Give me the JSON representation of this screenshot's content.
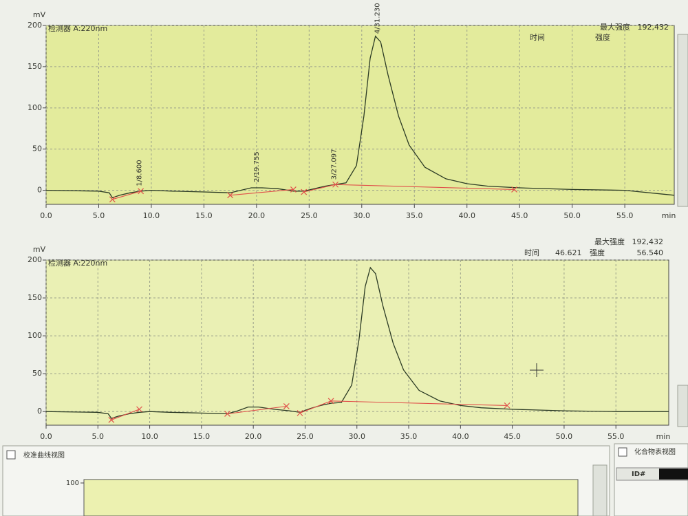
{
  "chart_data": [
    {
      "type": "line",
      "y_label": "mV",
      "x_label": "min",
      "detector": "检测器 A:220nm",
      "max_label": "最大强度",
      "max_value": "192,432",
      "time_label": "时间",
      "intensity_label": "强度",
      "xlim": [
        0,
        59.7
      ],
      "ylim": [
        -17,
        200
      ],
      "xticks": [
        {
          "value": 0,
          "label": "0.0"
        },
        {
          "value": 5,
          "label": "5.0"
        },
        {
          "value": 10,
          "label": "10.0"
        },
        {
          "value": 15,
          "label": "15.0"
        },
        {
          "value": 20,
          "label": "20.0"
        },
        {
          "value": 25,
          "label": "25.0"
        },
        {
          "value": 30,
          "label": "30.0"
        },
        {
          "value": 35,
          "label": "35.0"
        },
        {
          "value": 40,
          "label": "40.0"
        },
        {
          "value": 45,
          "label": "45.0"
        },
        {
          "value": 50,
          "label": "50.0"
        },
        {
          "value": 55,
          "label": "55.0"
        }
      ],
      "yticks": [
        0,
        50,
        100,
        150,
        200
      ],
      "grid": true,
      "series": [
        {
          "color": "#2b3a24",
          "x": [
            0,
            5,
            6,
            6.3,
            7,
            8,
            9,
            10,
            12,
            15,
            17.5,
            18.5,
            19.5,
            20.5,
            22,
            23.5,
            24.5,
            25.5,
            26.5,
            27.5,
            28.5,
            29.5,
            30.2,
            30.8,
            31.3,
            31.8,
            32.5,
            33.5,
            34.5,
            36,
            38,
            40,
            42,
            45,
            50,
            55,
            59.7
          ],
          "values": [
            0,
            -1,
            -3,
            -9,
            -6,
            -3,
            -1,
            0,
            -1,
            -2,
            -3,
            0,
            3,
            3,
            2,
            -1,
            -1,
            2,
            5,
            7,
            9,
            30,
            90,
            160,
            187,
            180,
            140,
            90,
            55,
            28,
            14,
            8,
            5,
            3,
            1,
            0,
            -6
          ]
        },
        {
          "color": "#e0504a",
          "x": [
            6.3,
            9,
            null,
            17.5,
            23.5,
            null,
            24.5,
            27.5,
            44.5
          ],
          "values": [
            -11,
            -1,
            null,
            -6,
            1,
            null,
            -2,
            7,
            1
          ]
        }
      ],
      "peaks": [
        {
          "label": "1/8.600",
          "x": 8.6
        },
        {
          "label": "2/19.755",
          "x": 19.755
        },
        {
          "label": "3/27.097",
          "x": 27.097
        },
        {
          "label": "4/31.230",
          "x": 31.23
        }
      ]
    },
    {
      "type": "line",
      "y_label": "mV",
      "x_label": "min",
      "detector": "检测器 A:220nm",
      "max_label": "最大强度",
      "max_value": "192,432",
      "time_label": "时间",
      "time_value": "46.621",
      "intensity_label": "强度",
      "intensity_value": "56.540",
      "xlim": [
        0,
        60.1
      ],
      "ylim": [
        -18,
        200
      ],
      "xticks": [
        {
          "value": 0,
          "label": "0.0"
        },
        {
          "value": 5,
          "label": "5.0"
        },
        {
          "value": 10,
          "label": "10.0"
        },
        {
          "value": 15,
          "label": "15.0"
        },
        {
          "value": 20,
          "label": "20.0"
        },
        {
          "value": 25,
          "label": "25.0"
        },
        {
          "value": 30,
          "label": "30.0"
        },
        {
          "value": 35,
          "label": "35.0"
        },
        {
          "value": 40,
          "label": "40.0"
        },
        {
          "value": 45,
          "label": "45.0"
        },
        {
          "value": 50,
          "label": "50.0"
        },
        {
          "value": 55,
          "label": "55.0"
        }
      ],
      "yticks": [
        0,
        50,
        100,
        150,
        200
      ],
      "grid": true,
      "series": [
        {
          "color": "#2b3a24",
          "x": [
            0,
            5,
            6,
            6.3,
            7,
            8,
            9,
            10,
            12,
            15,
            17.5,
            18.5,
            19.5,
            20.5,
            22,
            23.5,
            24.5,
            25.5,
            26.5,
            27.5,
            28.5,
            29.5,
            30.2,
            30.8,
            31.3,
            31.8,
            32.5,
            33.5,
            34.5,
            36,
            38,
            40,
            42,
            45,
            50,
            55,
            60.1
          ],
          "values": [
            0,
            -1,
            -3,
            -9,
            -6,
            -3,
            -1,
            0,
            -1,
            -2,
            -3,
            1,
            6,
            6,
            3,
            1,
            -1,
            4,
            8,
            11,
            12,
            35,
            95,
            165,
            190,
            182,
            140,
            90,
            55,
            28,
            14,
            8,
            5,
            3,
            1,
            0,
            0
          ]
        },
        {
          "color": "#e0504a",
          "x": [
            6.3,
            9,
            null,
            17.5,
            23.2,
            null,
            24.5,
            27.5,
            44.5
          ],
          "values": [
            -11,
            3,
            null,
            -3,
            7,
            null,
            -2,
            14,
            8
          ]
        }
      ]
    }
  ],
  "panels": {
    "calibration": {
      "title": "校准曲线视图",
      "yticks": [
        100
      ]
    },
    "compound": {
      "title": "化合物表视图",
      "column": "ID#"
    }
  }
}
